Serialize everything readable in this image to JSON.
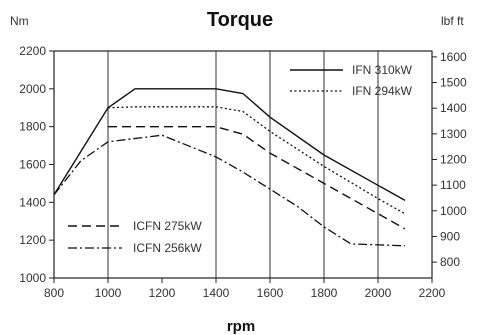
{
  "chart_data": {
    "type": "line",
    "title": "Torque",
    "xlabel": "rpm",
    "ylabel_left": "Nm",
    "ylabel_right": "lbf ft",
    "xlim": [
      800,
      2200
    ],
    "ylim": [
      1000,
      2200
    ],
    "ylim_right": [
      738,
      1623
    ],
    "x_ticks": [
      800,
      1000,
      1200,
      1400,
      1600,
      1800,
      2000,
      2200
    ],
    "y_ticks": [
      1000,
      1200,
      1400,
      1600,
      1800,
      2000,
      2200
    ],
    "y_right_ticks": [
      800,
      900,
      1000,
      1100,
      1200,
      1300,
      1400,
      1500,
      1600
    ],
    "grid": {
      "vertical_at": [
        1000,
        1400,
        1600,
        1800,
        2000
      ],
      "horizontal": false
    },
    "series": [
      {
        "name": "IFN 310kW",
        "style": "solid",
        "x": [
          800,
          1000,
          1100,
          1400,
          1500,
          1600,
          1800,
          2000,
          2100
        ],
        "y": [
          1440,
          1900,
          2000,
          2000,
          1975,
          1850,
          1650,
          1490,
          1410
        ]
      },
      {
        "name": "IFN 294kW",
        "style": "dotted",
        "x": [
          1000,
          1100,
          1400,
          1500,
          1600,
          1800,
          2000,
          2100
        ],
        "y": [
          1900,
          1905,
          1905,
          1880,
          1775,
          1590,
          1420,
          1340
        ]
      },
      {
        "name": "ICFN 275kW",
        "style": "dashed",
        "x": [
          1000,
          1100,
          1400,
          1500,
          1600,
          1800,
          2000,
          2100
        ],
        "y": [
          1800,
          1800,
          1800,
          1760,
          1660,
          1500,
          1340,
          1260
        ]
      },
      {
        "name": "ICFN 256kW",
        "style": "dashdot",
        "x": [
          800,
          900,
          1000,
          1200,
          1400,
          1500,
          1700,
          1800,
          1900,
          2100
        ],
        "y": [
          1440,
          1620,
          1720,
          1755,
          1640,
          1560,
          1380,
          1270,
          1180,
          1170
        ]
      }
    ],
    "legends": [
      {
        "position": "top-right",
        "items": [
          "IFN 310kW",
          "IFN 294kW"
        ]
      },
      {
        "position": "bottom-left",
        "items": [
          "ICFN 275kW",
          "ICFN 256kW"
        ]
      }
    ]
  }
}
